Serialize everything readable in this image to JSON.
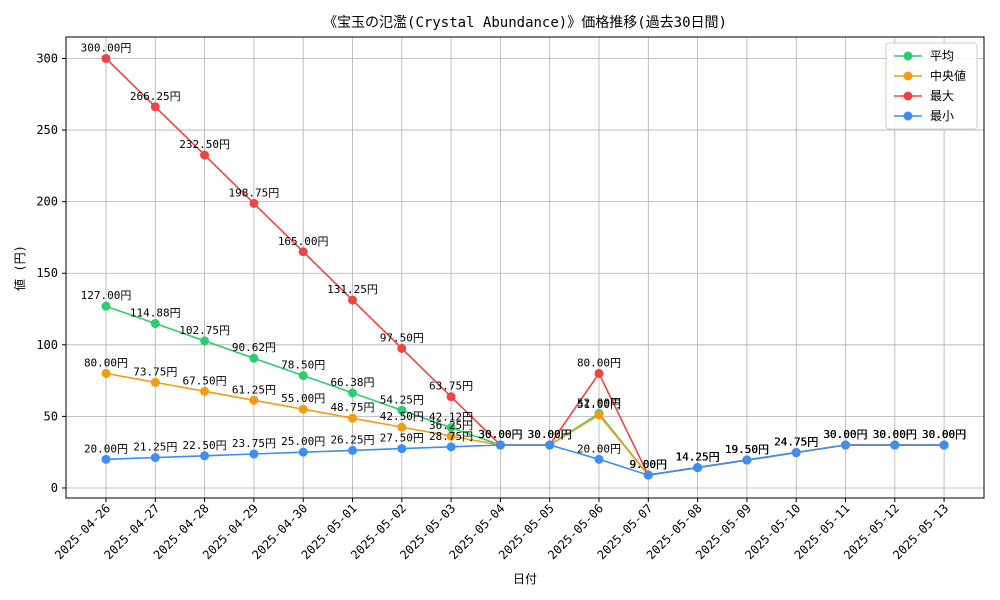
{
  "chart_data": {
    "type": "line",
    "title": "《宝玉の氾濫(Crystal Abundance)》価格推移(過去30日間)",
    "xlabel": "日付",
    "ylabel": "値 (円)",
    "ylim": [
      -7,
      315
    ],
    "yticks": [
      0,
      50,
      100,
      150,
      200,
      250,
      300
    ],
    "grid": true,
    "legend_position": "top-right",
    "value_suffix": "円",
    "categories": [
      "2025-04-26",
      "2025-04-27",
      "2025-04-28",
      "2025-04-29",
      "2025-04-30",
      "2025-05-01",
      "2025-05-02",
      "2025-05-03",
      "2025-05-04",
      "2025-05-05",
      "2025-05-06",
      "2025-05-07",
      "2025-05-08",
      "2025-05-09",
      "2025-05-10",
      "2025-05-11",
      "2025-05-12",
      "2025-05-13"
    ],
    "series": [
      {
        "name": "平均",
        "color": "#2ecc71",
        "values": [
          127.0,
          114.88,
          102.75,
          90.62,
          78.5,
          66.38,
          54.25,
          42.12,
          30.0,
          30.0,
          52.0,
          9.0,
          14.25,
          19.5,
          24.75,
          30.0,
          30.0,
          30.0
        ]
      },
      {
        "name": "中央値",
        "color": "#f39c12",
        "values": [
          80.0,
          73.75,
          67.5,
          61.25,
          55.0,
          48.75,
          42.5,
          36.25,
          30.0,
          30.0,
          51.0,
          9.0,
          14.25,
          19.5,
          24.75,
          30.0,
          30.0,
          30.0
        ]
      },
      {
        "name": "最大",
        "color": "#ef4444",
        "values": [
          300.0,
          266.25,
          232.5,
          198.75,
          165.0,
          131.25,
          97.5,
          63.75,
          30.0,
          30.0,
          80.0,
          9.0,
          14.25,
          19.5,
          24.75,
          30.0,
          30.0,
          30.0
        ]
      },
      {
        "name": "最小",
        "color": "#3b8ef3",
        "values": [
          20.0,
          21.25,
          22.5,
          23.75,
          25.0,
          26.25,
          27.5,
          28.75,
          30.0,
          30.0,
          20.0,
          9.0,
          14.25,
          19.5,
          24.75,
          30.0,
          30.0,
          30.0
        ]
      }
    ]
  }
}
